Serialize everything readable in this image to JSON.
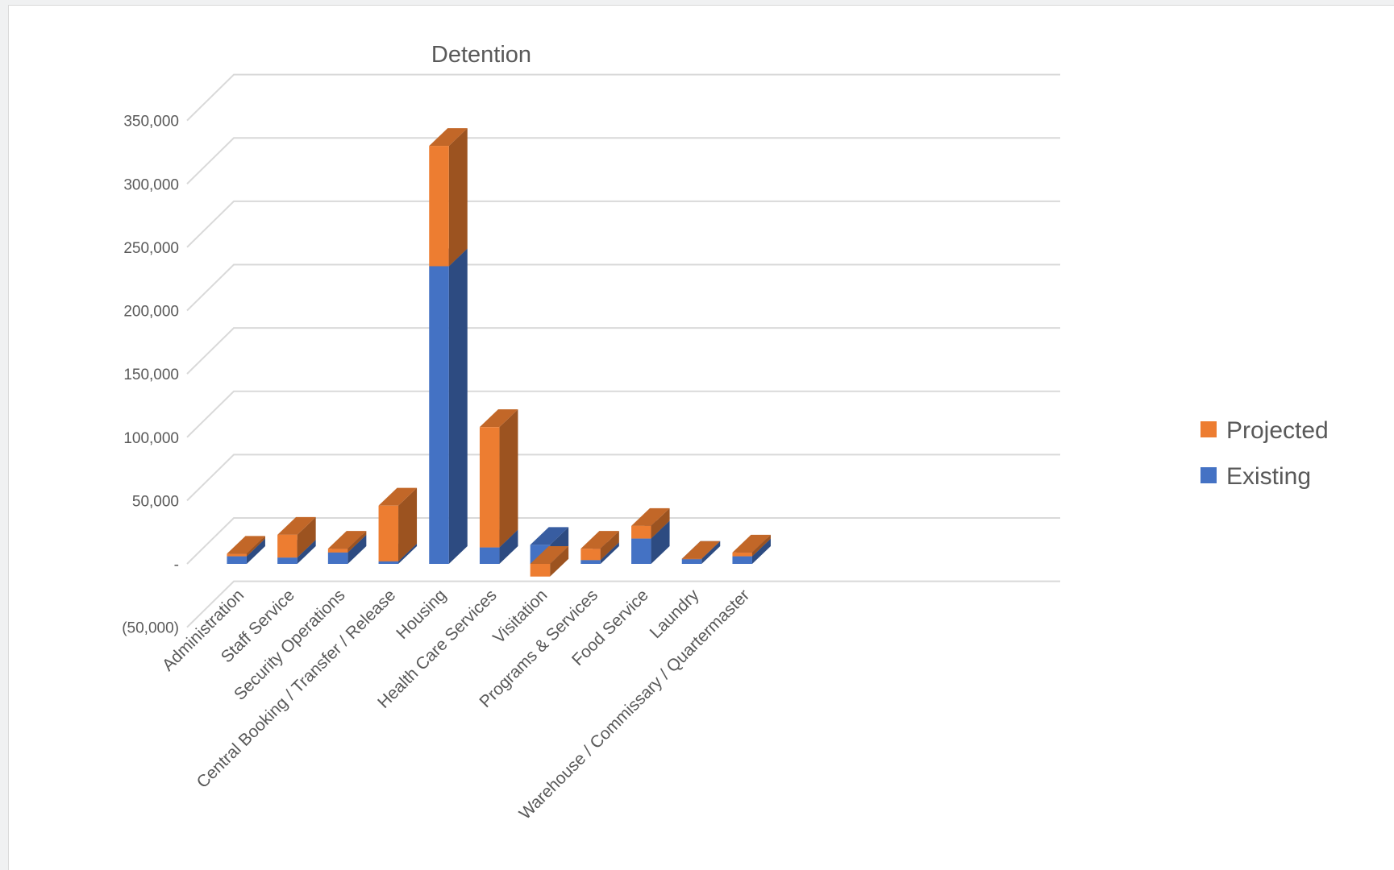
{
  "chart_data": {
    "type": "bar",
    "stacked": true,
    "three_d": true,
    "title": "Detention",
    "categories": [
      "Administration",
      "Staff Service",
      "Security Operations",
      "Central Booking / Transfer / Release",
      "Housing",
      "Health Care Services",
      "Visitation",
      "Programs & Services",
      "Food Service",
      "Laundry",
      "Warehouse / Commissary / Quartermaster"
    ],
    "series": [
      {
        "name": "Existing",
        "color": "#4472c4",
        "values": [
          6000,
          5000,
          9000,
          2000,
          235000,
          13000,
          15000,
          3000,
          20000,
          4000,
          6000
        ]
      },
      {
        "name": "Projected",
        "color": "#ed7d31",
        "values": [
          2000,
          18000,
          3000,
          44000,
          95000,
          95000,
          -10000,
          9000,
          10000,
          0,
          3000
        ]
      }
    ],
    "ylim": [
      -50000,
      350000
    ],
    "yticks": [
      -50000,
      0,
      50000,
      100000,
      150000,
      200000,
      250000,
      300000,
      350000
    ],
    "ytick_labels": [
      "(50,000)",
      "-",
      "50,000",
      "100,000",
      "150,000",
      "200,000",
      "250,000",
      "300,000",
      "350,000"
    ],
    "grid": true,
    "legend_position": "right"
  }
}
